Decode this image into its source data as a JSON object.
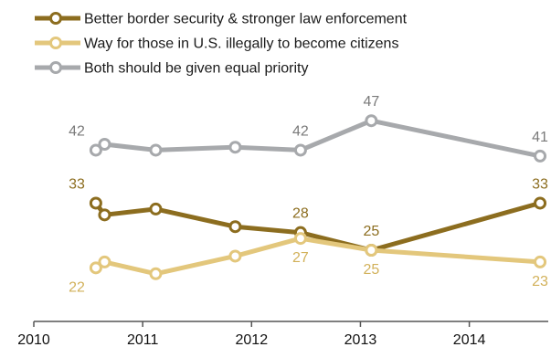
{
  "chart_data": {
    "type": "line",
    "title": "",
    "xlabel": "",
    "ylabel": "",
    "x_ticks": [
      "2010",
      "2011",
      "2012",
      "2013",
      "2014"
    ],
    "xlim": [
      2010.0,
      2014.7
    ],
    "ylim": [
      16,
      52
    ],
    "grid": false,
    "legend_position": "top-left",
    "series": [
      {
        "name": "Better border security & stronger law enforcement",
        "color": "#8c6d1f",
        "points": [
          {
            "x": 2010.57,
            "y": 33,
            "label": "33"
          },
          {
            "x": 2010.65,
            "y": 31
          },
          {
            "x": 2011.12,
            "y": 32
          },
          {
            "x": 2011.85,
            "y": 29
          },
          {
            "x": 2012.45,
            "y": 28,
            "label": "28"
          },
          {
            "x": 2013.1,
            "y": 25,
            "label": "25"
          },
          {
            "x": 2014.65,
            "y": 33,
            "label": "33"
          }
        ]
      },
      {
        "name": "Way for those in U.S. illegally to become citizens",
        "color": "#e3c77c",
        "points": [
          {
            "x": 2010.57,
            "y": 22,
            "label": "22"
          },
          {
            "x": 2010.65,
            "y": 23
          },
          {
            "x": 2011.12,
            "y": 21
          },
          {
            "x": 2011.85,
            "y": 24
          },
          {
            "x": 2012.45,
            "y": 27,
            "label": "27"
          },
          {
            "x": 2013.1,
            "y": 25,
            "label": "25"
          },
          {
            "x": 2014.65,
            "y": 23,
            "label": "23"
          }
        ]
      },
      {
        "name": "Both should be given equal priority",
        "color": "#a7a9ac",
        "points": [
          {
            "x": 2010.57,
            "y": 42,
            "label": "42"
          },
          {
            "x": 2010.65,
            "y": 43
          },
          {
            "x": 2011.12,
            "y": 42
          },
          {
            "x": 2011.85,
            "y": 42.5
          },
          {
            "x": 2012.45,
            "y": 42,
            "label": "42"
          },
          {
            "x": 2013.1,
            "y": 47,
            "label": "47"
          },
          {
            "x": 2014.65,
            "y": 41,
            "label": "41"
          }
        ]
      }
    ]
  }
}
